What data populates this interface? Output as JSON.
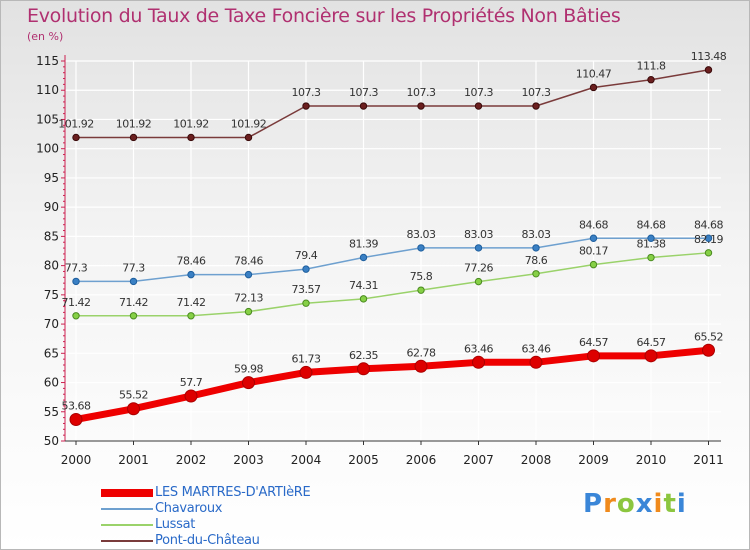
{
  "chart_data": {
    "type": "line",
    "title": "Evolution du Taux de Taxe Foncière sur les Propriétés Non Bâties",
    "ylabel": "(en %)",
    "xlabel": "",
    "ylim": [
      50,
      115
    ],
    "yticks": [
      50,
      55,
      60,
      65,
      70,
      75,
      80,
      85,
      90,
      95,
      100,
      105,
      110,
      115
    ],
    "x": [
      "2000",
      "2001",
      "2002",
      "2003",
      "2004",
      "2005",
      "2006",
      "2007",
      "2008",
      "2009",
      "2010",
      "2011"
    ],
    "series": [
      {
        "name": "LES MARTRES-D'ARTIèRE",
        "color": "#ee0000",
        "values": [
          53.68,
          55.52,
          57.7,
          59.98,
          61.73,
          62.35,
          62.78,
          63.46,
          63.46,
          64.57,
          64.57,
          65.52
        ],
        "labels": [
          "53.68",
          "55.52",
          "57.7",
          "59.98",
          "61.73",
          "62.35",
          "62.78",
          "63.46",
          "63.46",
          "64.57",
          "64.57",
          "65.52"
        ]
      },
      {
        "name": "Chavaroux",
        "color": "#6ea0cf",
        "values": [
          77.3,
          77.3,
          78.46,
          78.46,
          79.4,
          81.39,
          83.03,
          83.03,
          83.03,
          84.68,
          84.68,
          84.68
        ],
        "labels": [
          "77.3",
          "77.3",
          "78.46",
          "78.46",
          "79.4",
          "81.39",
          "83.03",
          "83.03",
          "83.03",
          "84.68",
          "84.68",
          "84.68"
        ]
      },
      {
        "name": "Lussat",
        "color": "#9ad26a",
        "values": [
          71.42,
          71.42,
          71.42,
          72.13,
          73.57,
          74.31,
          75.8,
          77.26,
          78.6,
          80.17,
          81.38,
          82.19
        ],
        "labels": [
          "71.42",
          "71.42",
          "71.42",
          "72.13",
          "73.57",
          "74.31",
          "75.8",
          "77.26",
          "78.6",
          "80.17",
          "81.38",
          "82.19"
        ]
      },
      {
        "name": "Pont-du-Château",
        "color": "#7a3b3b",
        "values": [
          101.92,
          101.92,
          101.92,
          101.92,
          107.3,
          107.3,
          107.3,
          107.3,
          107.3,
          110.47,
          111.8,
          113.48
        ],
        "labels": [
          "101.92",
          "101.92",
          "101.92",
          "101.92",
          "107.3",
          "107.3",
          "107.3",
          "107.3",
          "107.3",
          "110.47",
          "111.8",
          "113.48"
        ]
      }
    ]
  },
  "logo": {
    "letters": [
      "P",
      "r",
      "o",
      "x",
      "i",
      "t",
      "i"
    ],
    "colors": [
      "#3a86d8",
      "#f08a1c",
      "#8cc63f",
      "#3a86d8",
      "#f08a1c",
      "#8cc63f",
      "#3a86d8"
    ]
  }
}
